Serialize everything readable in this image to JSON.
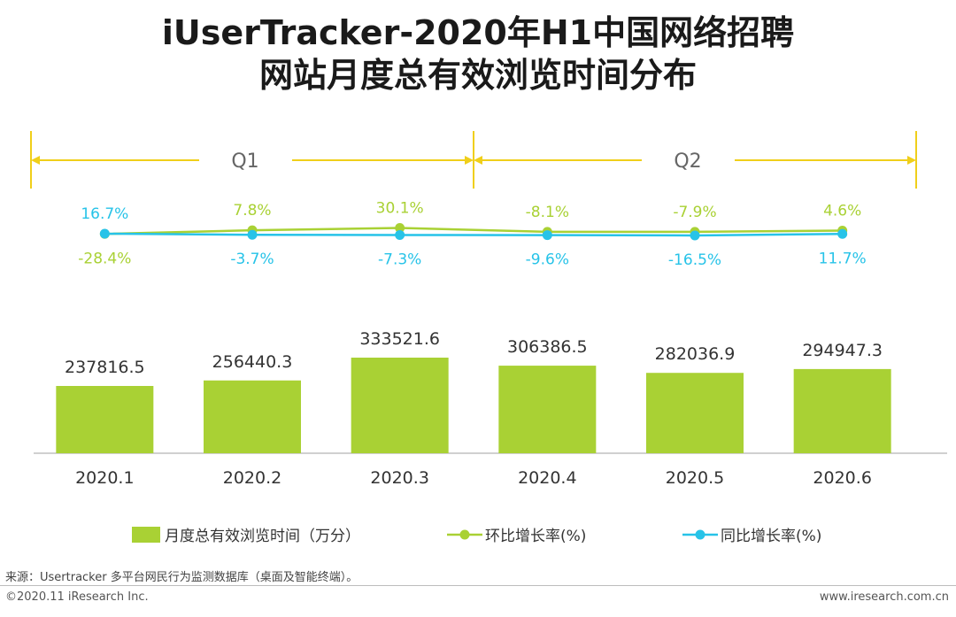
{
  "title_line1": "iUserTracker-2020年H1中国网络招聘",
  "title_line2": "网站月度总有效浏览时间分布",
  "quarters": [
    "Q1",
    "Q2"
  ],
  "colors": {
    "bar": "#a9d134",
    "mom": "#a9d134",
    "yoy": "#27c3e8",
    "quarter_line": "#f0cf1a",
    "mom_label": "#a9d134",
    "yoy_label": "#27c3e8",
    "bar_label": "#333333"
  },
  "chart_data": {
    "type": "bar+line",
    "categories": [
      "2020.1",
      "2020.2",
      "2020.3",
      "2020.4",
      "2020.5",
      "2020.6"
    ],
    "series": [
      {
        "name": "月度总有效浏览时间（万分）",
        "type": "bar",
        "values": [
          237816.5,
          256440.3,
          333521.6,
          306386.5,
          282036.9,
          294947.3
        ]
      },
      {
        "name": "环比增长率(%)",
        "type": "line",
        "values": [
          -28.4,
          7.8,
          30.1,
          -8.1,
          -7.9,
          4.6
        ],
        "labels": [
          "-28.4%",
          "7.8%",
          "30.1%",
          "-8.1%",
          "-7.9%",
          "4.6%"
        ]
      },
      {
        "name": "同比增长率(%)",
        "type": "line",
        "values": [
          16.7,
          -3.7,
          -7.3,
          -9.6,
          -16.5,
          11.7
        ],
        "labels": [
          "16.7%",
          "-3.7%",
          "-7.3%",
          "-9.6%",
          "-16.5%",
          "11.7%"
        ]
      }
    ],
    "bar_labels": [
      "237816.5",
      "256440.3",
      "333521.6",
      "306386.5",
      "282036.9",
      "294947.3"
    ],
    "bar_ylim": [
      0,
      400000
    ]
  },
  "legend": {
    "bar": "月度总有效浏览时间（万分）",
    "mom": "环比增长率(%)",
    "yoy": "同比增长率(%)"
  },
  "footer": {
    "source": "来源：Usertracker 多平台网民行为监测数据库（桌面及智能终端）。",
    "copyright": "©2020.11 iResearch Inc.",
    "site": "www.iresearch.com.cn"
  }
}
